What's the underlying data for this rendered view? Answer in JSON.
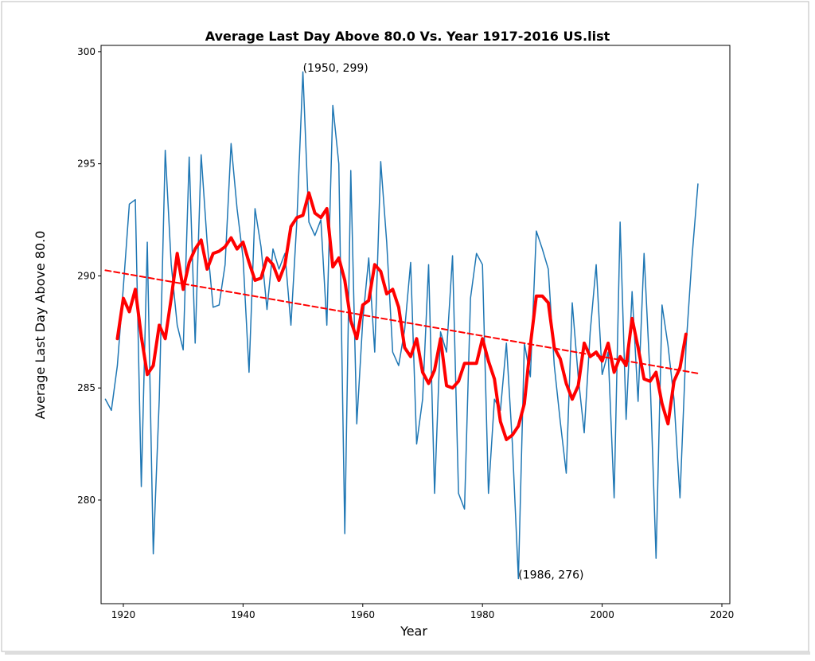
{
  "chart_data": {
    "type": "line",
    "title": "Average Last Day Above 80.0 Vs. Year 1917-2016 US.list",
    "xlabel": "Year",
    "ylabel": "Average Last Day Above 80.0",
    "xlim": [
      1916.28,
      2021.33
    ],
    "ylim": [
      275.38,
      300.28
    ],
    "xticks": [
      1920,
      1940,
      1960,
      1980,
      2000,
      2020
    ],
    "yticks": [
      280,
      285,
      290,
      295,
      300
    ],
    "grid": false,
    "series": [
      {
        "color": "#1f77b4",
        "width": 1.5,
        "dash": false,
        "x": [
          1917,
          1918,
          1919,
          1920,
          1921,
          1922,
          1923,
          1924,
          1925,
          1926,
          1927,
          1928,
          1929,
          1930,
          1931,
          1932,
          1933,
          1934,
          1935,
          1936,
          1937,
          1938,
          1939,
          1940,
          1941,
          1942,
          1943,
          1944,
          1945,
          1946,
          1947,
          1948,
          1949,
          1950,
          1951,
          1952,
          1953,
          1954,
          1955,
          1956,
          1957,
          1958,
          1959,
          1960,
          1961,
          1962,
          1963,
          1964,
          1965,
          1966,
          1967,
          1968,
          1969,
          1970,
          1971,
          1972,
          1973,
          1974,
          1975,
          1976,
          1977,
          1978,
          1979,
          1980,
          1981,
          1982,
          1983,
          1984,
          1985,
          1986,
          1987,
          1988,
          1989,
          1990,
          1991,
          1992,
          1993,
          1994,
          1995,
          1996,
          1997,
          1998,
          1999,
          2000,
          2001,
          2002,
          2003,
          2004,
          2005,
          2006,
          2007,
          2008,
          2009,
          2010,
          2011,
          2012,
          2013,
          2014,
          2015,
          2016
        ],
        "values": [
          284.5,
          284.0,
          286.0,
          289.5,
          293.2,
          293.4,
          280.6,
          291.5,
          277.6,
          284.5,
          295.6,
          290.5,
          287.8,
          286.7,
          295.3,
          287.0,
          295.4,
          291.5,
          288.6,
          288.7,
          290.5,
          295.9,
          293.0,
          290.8,
          285.7,
          293.0,
          291.3,
          288.5,
          291.2,
          290.3,
          291.0,
          287.8,
          292.5,
          299.1,
          292.4,
          291.8,
          292.5,
          287.8,
          297.6,
          295.0,
          278.5,
          294.7,
          283.4,
          288.0,
          290.8,
          286.6,
          295.1,
          291.5,
          286.6,
          286.0,
          287.6,
          290.6,
          282.5,
          284.5,
          290.5,
          280.3,
          287.5,
          286.6,
          290.9,
          280.3,
          279.6,
          289.0,
          291.0,
          290.5,
          280.3,
          284.5,
          284.0,
          287.0,
          282.5,
          276.5,
          287.0,
          285.5,
          292.0,
          291.2,
          290.3,
          286.0,
          283.5,
          281.2,
          288.8,
          285.5,
          283.0,
          287.5,
          290.5,
          285.6,
          286.6,
          280.1,
          292.4,
          283.6,
          289.3,
          284.4,
          291.0,
          285.5,
          277.4,
          288.7,
          286.9,
          284.5,
          280.1,
          286.8,
          290.8,
          294.1
        ]
      },
      {
        "color": "#ff0000",
        "width": 4,
        "dash": false,
        "x": [
          1919,
          1920,
          1921,
          1922,
          1923,
          1924,
          1925,
          1926,
          1927,
          1928,
          1929,
          1930,
          1931,
          1932,
          1933,
          1934,
          1935,
          1936,
          1937,
          1938,
          1939,
          1940,
          1941,
          1942,
          1943,
          1944,
          1945,
          1946,
          1947,
          1948,
          1949,
          1950,
          1951,
          1952,
          1953,
          1954,
          1955,
          1956,
          1957,
          1958,
          1959,
          1960,
          1961,
          1962,
          1963,
          1964,
          1965,
          1966,
          1967,
          1968,
          1969,
          1970,
          1971,
          1972,
          1973,
          1974,
          1975,
          1976,
          1977,
          1978,
          1979,
          1980,
          1981,
          1982,
          1983,
          1984,
          1985,
          1986,
          1987,
          1988,
          1989,
          1990,
          1991,
          1992,
          1993,
          1994,
          1995,
          1996,
          1997,
          1998,
          1999,
          2000,
          2001,
          2002,
          2003,
          2004,
          2005,
          2006,
          2007,
          2008,
          2009,
          2010,
          2011,
          2012,
          2013,
          2014
        ],
        "values": [
          287.2,
          289.0,
          288.4,
          289.4,
          287.3,
          285.6,
          286.0,
          287.8,
          287.2,
          289.0,
          291.0,
          289.4,
          290.6,
          291.2,
          291.6,
          290.3,
          291.0,
          291.1,
          291.3,
          291.7,
          291.2,
          291.5,
          290.6,
          289.8,
          289.9,
          290.8,
          290.5,
          289.8,
          290.5,
          292.2,
          292.6,
          292.7,
          293.7,
          292.8,
          292.6,
          293.0,
          290.4,
          290.8,
          289.8,
          288.0,
          287.2,
          288.7,
          288.9,
          290.5,
          290.2,
          289.2,
          289.4,
          288.6,
          286.8,
          286.4,
          287.2,
          285.7,
          285.2,
          285.8,
          287.2,
          285.1,
          285.0,
          285.3,
          286.1,
          286.1,
          286.1,
          287.2,
          286.2,
          285.4,
          283.5,
          282.7,
          282.9,
          283.3,
          284.3,
          286.9,
          289.1,
          289.1,
          288.8,
          286.8,
          286.3,
          285.2,
          284.5,
          285.1,
          287.0,
          286.4,
          286.6,
          286.2,
          287.0,
          285.7,
          286.4,
          286.0,
          288.1,
          286.8,
          285.4,
          285.3,
          285.7,
          284.3,
          283.4,
          285.3,
          285.9,
          287.4
        ]
      },
      {
        "color": "#ff0000",
        "width": 2,
        "dash": true,
        "x": [
          1917,
          2016
        ],
        "values": [
          290.25,
          285.65
        ]
      }
    ],
    "annotations": [
      {
        "text": "(1950, 299)",
        "x": 1950,
        "y": 299.1
      },
      {
        "text": "(1986, 276)",
        "x": 1986,
        "y": 276.5
      }
    ]
  }
}
